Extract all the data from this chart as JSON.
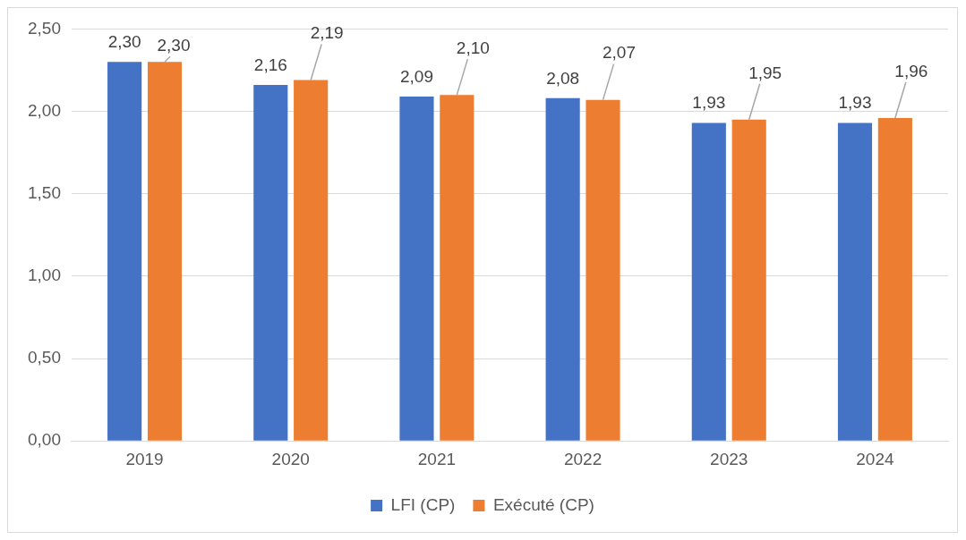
{
  "chart_data": {
    "type": "bar",
    "categories": [
      "2019",
      "2020",
      "2021",
      "2022",
      "2023",
      "2024"
    ],
    "series": [
      {
        "name": "LFI (CP)",
        "color": "#4472c4",
        "values": [
          2.3,
          2.16,
          2.09,
          2.08,
          1.93,
          1.93
        ],
        "value_labels": [
          "2,30",
          "2,16",
          "2,09",
          "2,08",
          "1,93",
          "1,93"
        ]
      },
      {
        "name": "Exécuté (CP)",
        "color": "#ed7d31",
        "values": [
          2.3,
          2.19,
          2.1,
          2.07,
          1.95,
          1.96
        ],
        "value_labels": [
          "2,30",
          "2,19",
          "2,10",
          "2,07",
          "1,95",
          "1,96"
        ]
      }
    ],
    "ylim": [
      0,
      2.5
    ],
    "yticks": [
      {
        "value": 0,
        "label": "0,00"
      },
      {
        "value": 0.5,
        "label": "0,50"
      },
      {
        "value": 1,
        "label": "1,00"
      },
      {
        "value": 1.5,
        "label": "1,50"
      },
      {
        "value": 2,
        "label": "2,00"
      },
      {
        "value": 2.5,
        "label": "2,50"
      }
    ],
    "grid": "y",
    "legend": "bottom"
  }
}
